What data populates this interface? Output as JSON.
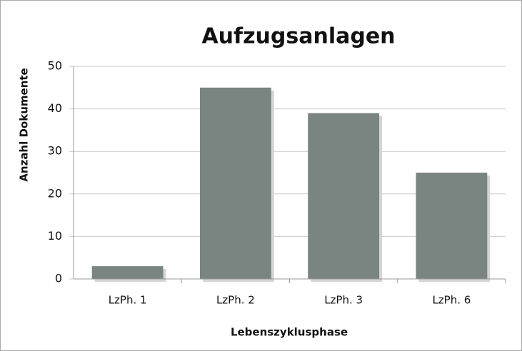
{
  "chart_data": {
    "type": "bar",
    "title": "Aufzugsanlagen",
    "y_label": "Anzahl Dokumente",
    "x_label": "Lebenszyklusphase",
    "categories": [
      "LzPh. 1",
      "LzPh. 2",
      "LzPh. 3",
      "LzPh. 6"
    ],
    "values": [
      3,
      45,
      39,
      25
    ],
    "color": "#7a8481",
    "ylim": [
      0,
      50
    ],
    "yticks": [
      0,
      10,
      20,
      30,
      40,
      50
    ],
    "grid": true
  }
}
